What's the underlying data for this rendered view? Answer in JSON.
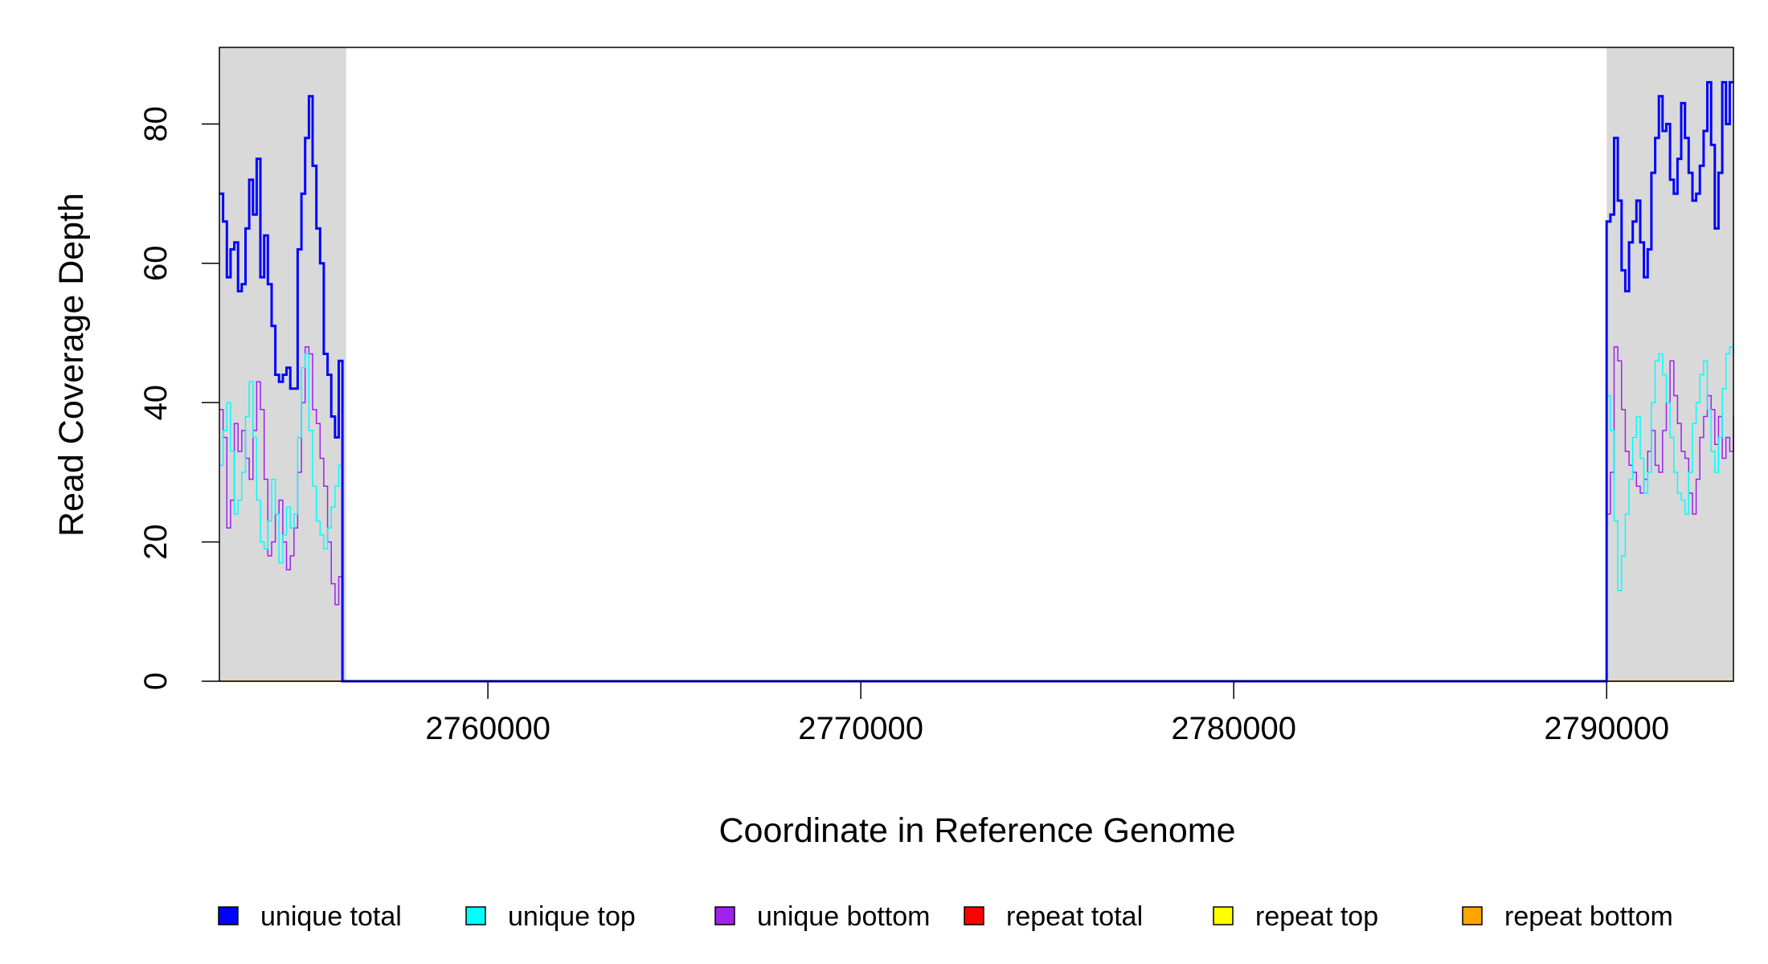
{
  "chart_data": {
    "type": "line",
    "xlabel": "Coordinate in Reference Genome",
    "ylabel": "Read Coverage Depth",
    "xlim": [
      2752800,
      2793400
    ],
    "ylim": [
      0,
      91
    ],
    "xticks": [
      2760000,
      2770000,
      2780000,
      2790000
    ],
    "xtick_labels": [
      "2760000",
      "2770000",
      "2780000",
      "2790000"
    ],
    "yticks": [
      0,
      20,
      40,
      60,
      80
    ],
    "ytick_labels": [
      "0",
      "20",
      "40",
      "60",
      "80"
    ],
    "shaded_regions": [
      [
        2752800,
        2756200
      ],
      [
        2790000,
        2793400
      ]
    ],
    "shade_color": "#d9d9d9",
    "legend_position": "bottom",
    "series": [
      {
        "name": "unique total",
        "color": "#0000ff",
        "line_width": 3,
        "x": [
          2752800,
          2752900,
          2753000,
          2753100,
          2753200,
          2753300,
          2753400,
          2753500,
          2753600,
          2753700,
          2753800,
          2753900,
          2754000,
          2754100,
          2754200,
          2754300,
          2754400,
          2754500,
          2754600,
          2754700,
          2754800,
          2754900,
          2755000,
          2755100,
          2755200,
          2755300,
          2755400,
          2755500,
          2755600,
          2755700,
          2755800,
          2755900,
          2756000,
          2756100,
          2756150,
          2756200,
          2790000,
          2790100,
          2790200,
          2790300,
          2790400,
          2790500,
          2790600,
          2790700,
          2790800,
          2790900,
          2791000,
          2791100,
          2791200,
          2791300,
          2791400,
          2791500,
          2791600,
          2791700,
          2791800,
          2791900,
          2792000,
          2792100,
          2792200,
          2792300,
          2792400,
          2792500,
          2792600,
          2792700,
          2792800,
          2792900,
          2793000,
          2793100,
          2793200,
          2793300,
          2793400
        ],
        "y": [
          70,
          66,
          58,
          62,
          63,
          56,
          57,
          65,
          72,
          67,
          75,
          58,
          64,
          57,
          51,
          44,
          43,
          44,
          45,
          42,
          42,
          62,
          70,
          78,
          84,
          74,
          65,
          60,
          47,
          44,
          38,
          35,
          46,
          0,
          0,
          0,
          66,
          67,
          78,
          69,
          59,
          56,
          63,
          66,
          69,
          63,
          58,
          62,
          73,
          78,
          84,
          79,
          80,
          72,
          70,
          75,
          83,
          78,
          73,
          69,
          70,
          74,
          79,
          86,
          77,
          65,
          73,
          86,
          80,
          86,
          86
        ]
      },
      {
        "name": "unique top",
        "color": "#00ffff",
        "line_width": 1.5,
        "x": [
          2752800,
          2752900,
          2753000,
          2753100,
          2753200,
          2753300,
          2753400,
          2753500,
          2753600,
          2753700,
          2753800,
          2753900,
          2754000,
          2754100,
          2754200,
          2754300,
          2754400,
          2754500,
          2754600,
          2754700,
          2754800,
          2754900,
          2755000,
          2755100,
          2755200,
          2755300,
          2755400,
          2755500,
          2755600,
          2755700,
          2755800,
          2755900,
          2756000,
          2756100,
          2756150,
          2756200,
          2790000,
          2790100,
          2790200,
          2790300,
          2790400,
          2790500,
          2790600,
          2790700,
          2790800,
          2790900,
          2791000,
          2791100,
          2791200,
          2791300,
          2791400,
          2791500,
          2791600,
          2791700,
          2791800,
          2791900,
          2792000,
          2792100,
          2792200,
          2792300,
          2792400,
          2792500,
          2792600,
          2792700,
          2792800,
          2792900,
          2793000,
          2793100,
          2793200,
          2793300,
          2793400
        ],
        "y": [
          31,
          36,
          40,
          33,
          24,
          26,
          30,
          38,
          43,
          35,
          26,
          20,
          19,
          23,
          29,
          24,
          17,
          21,
          25,
          22,
          24,
          35,
          45,
          47,
          36,
          28,
          23,
          21,
          19,
          22,
          25,
          28,
          31,
          0,
          0,
          0,
          41,
          36,
          23,
          13,
          18,
          24,
          29,
          35,
          38,
          32,
          27,
          30,
          40,
          46,
          47,
          44,
          40,
          35,
          30,
          27,
          26,
          24,
          30,
          37,
          40,
          44,
          46,
          39,
          33,
          30,
          35,
          42,
          47,
          48,
          47
        ]
      },
      {
        "name": "unique bottom",
        "color": "#a020f0",
        "line_width": 1.5,
        "x": [
          2752800,
          2752900,
          2753000,
          2753100,
          2753200,
          2753300,
          2753400,
          2753500,
          2753600,
          2753700,
          2753800,
          2753900,
          2754000,
          2754100,
          2754200,
          2754300,
          2754400,
          2754500,
          2754600,
          2754700,
          2754800,
          2754900,
          2755000,
          2755100,
          2755200,
          2755300,
          2755400,
          2755500,
          2755600,
          2755700,
          2755800,
          2755900,
          2756000,
          2756100,
          2756150,
          2756200,
          2790000,
          2790100,
          2790200,
          2790300,
          2790400,
          2790500,
          2790600,
          2790700,
          2790800,
          2790900,
          2791000,
          2791100,
          2791200,
          2791300,
          2791400,
          2791500,
          2791600,
          2791700,
          2791800,
          2791900,
          2792000,
          2792100,
          2792200,
          2792300,
          2792400,
          2792500,
          2792600,
          2792700,
          2792800,
          2792900,
          2793000,
          2793100,
          2793200,
          2793300,
          2793400
        ],
        "y": [
          39,
          35,
          22,
          26,
          37,
          33,
          36,
          32,
          29,
          36,
          43,
          39,
          29,
          18,
          20,
          24,
          26,
          20,
          16,
          18,
          22,
          30,
          40,
          48,
          47,
          39,
          37,
          32,
          28,
          20,
          14,
          11,
          15,
          0,
          0,
          0,
          24,
          30,
          48,
          46,
          39,
          33,
          31,
          30,
          28,
          27,
          29,
          33,
          36,
          31,
          30,
          36,
          40,
          46,
          41,
          37,
          33,
          32,
          27,
          24,
          29,
          35,
          38,
          41,
          39,
          34,
          38,
          32,
          35,
          33,
          38
        ]
      },
      {
        "name": "repeat total",
        "color": "#ff0000",
        "line_width": 1.5,
        "x": [
          2752800,
          2793400
        ],
        "y": [
          0,
          0
        ]
      },
      {
        "name": "repeat top",
        "color": "#ffff00",
        "line_width": 1.5,
        "x": [
          2752800,
          2793400
        ],
        "y": [
          0,
          0
        ]
      },
      {
        "name": "repeat bottom",
        "color": "#ffa500",
        "line_width": 2,
        "x": [
          2752800,
          2793400
        ],
        "y": [
          0,
          0
        ]
      }
    ]
  }
}
